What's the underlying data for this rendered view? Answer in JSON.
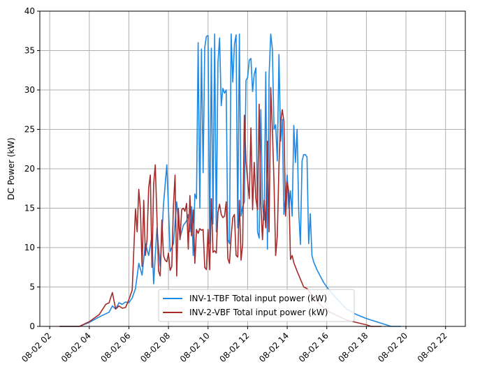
{
  "chart_data": {
    "type": "line",
    "title": "",
    "xlabel": "",
    "ylabel": "DC Power (kW)",
    "xlim": [
      "08-02 01:30",
      "08-02 23:00"
    ],
    "ylim": [
      0,
      40
    ],
    "grid": true,
    "legend_position": "bottom-center",
    "x_tick_labels": [
      "08-02 02",
      "08-02 04",
      "08-02 06",
      "08-02 08",
      "08-02 10",
      "08-02 12",
      "08-02 14",
      "08-02 16",
      "08-02 18",
      "08-02 20",
      "08-02 22"
    ],
    "y_tick_labels": [
      "0",
      "5",
      "10",
      "15",
      "20",
      "25",
      "30",
      "35",
      "40"
    ],
    "series": [
      {
        "name": "INV-1-TBF Total input power (kW)",
        "color": "#1e88e5",
        "points": [
          [
            "08-02 02:30",
            0
          ],
          [
            "08-02 03:00",
            0
          ],
          [
            "08-02 03:30",
            0
          ],
          [
            "08-02 04:00",
            0.5
          ],
          [
            "08-02 04:30",
            1.2
          ],
          [
            "08-02 05:00",
            1.8
          ],
          [
            "08-02 05:10",
            2.6
          ],
          [
            "08-02 05:20",
            2.2
          ],
          [
            "08-02 05:30",
            3.0
          ],
          [
            "08-02 05:40",
            2.8
          ],
          [
            "08-02 05:50",
            3.1
          ],
          [
            "08-02 06:00",
            3.0
          ],
          [
            "08-02 06:10",
            3.6
          ],
          [
            "08-02 06:20",
            4.8
          ],
          [
            "08-02 06:30",
            8.0
          ],
          [
            "08-02 06:40",
            6.5
          ],
          [
            "08-02 06:50",
            10.5
          ],
          [
            "08-02 07:00",
            9.0
          ],
          [
            "08-02 07:10",
            11.5
          ],
          [
            "08-02 07:15",
            5.4
          ],
          [
            "08-02 07:25",
            12.5
          ],
          [
            "08-02 07:35",
            7.6
          ],
          [
            "08-02 07:45",
            15.5
          ],
          [
            "08-02 07:55",
            20.5
          ],
          [
            "08-02 08:05",
            9.5
          ],
          [
            "08-02 08:15",
            10.5
          ],
          [
            "08-02 08:25",
            15.8
          ],
          [
            "08-02 08:35",
            11.2
          ],
          [
            "08-02 08:45",
            12.8
          ],
          [
            "08-02 08:55",
            13.4
          ],
          [
            "08-02 09:00",
            14.2
          ],
          [
            "08-02 09:05",
            12.0
          ],
          [
            "08-02 09:10",
            15.2
          ],
          [
            "08-02 09:15",
            9.0
          ],
          [
            "08-02 09:20",
            16.8
          ],
          [
            "08-02 09:25",
            16.2
          ],
          [
            "08-02 09:30",
            36.0
          ],
          [
            "08-02 09:35",
            15.0
          ],
          [
            "08-02 09:40",
            35.2
          ],
          [
            "08-02 09:45",
            19.5
          ],
          [
            "08-02 09:50",
            35.4
          ],
          [
            "08-02 09:55",
            36.8
          ],
          [
            "08-02 10:00",
            36.9
          ],
          [
            "08-02 10:05",
            10.5
          ],
          [
            "08-02 10:10",
            35.3
          ],
          [
            "08-02 10:15",
            13.0
          ],
          [
            "08-02 10:20",
            37.1
          ],
          [
            "08-02 10:25",
            12.0
          ],
          [
            "08-02 10:30",
            33.5
          ],
          [
            "08-02 10:35",
            36.6
          ],
          [
            "08-02 10:40",
            28.0
          ],
          [
            "08-02 10:45",
            30.2
          ],
          [
            "08-02 10:50",
            29.6
          ],
          [
            "08-02 10:55",
            30.0
          ],
          [
            "08-02 11:00",
            11.0
          ],
          [
            "08-02 11:05",
            10.5
          ],
          [
            "08-02 11:10",
            37.1
          ],
          [
            "08-02 11:15",
            31.0
          ],
          [
            "08-02 11:20",
            35.8
          ],
          [
            "08-02 11:25",
            37.0
          ],
          [
            "08-02 11:30",
            12.5
          ],
          [
            "08-02 11:35",
            37.1
          ],
          [
            "08-02 11:40",
            14.0
          ],
          [
            "08-02 11:45",
            15.2
          ],
          [
            "08-02 11:50",
            15.8
          ],
          [
            "08-02 11:55",
            31.2
          ],
          [
            "08-02 12:00",
            31.6
          ],
          [
            "08-02 12:05",
            33.8
          ],
          [
            "08-02 12:10",
            34.0
          ],
          [
            "08-02 12:15",
            29.8
          ],
          [
            "08-02 12:20",
            32.0
          ],
          [
            "08-02 12:25",
            32.8
          ],
          [
            "08-02 12:30",
            12.0
          ],
          [
            "08-02 12:35",
            11.2
          ],
          [
            "08-02 12:40",
            27.5
          ],
          [
            "08-02 12:45",
            15.5
          ],
          [
            "08-02 12:50",
            13.5
          ],
          [
            "08-02 12:55",
            32.3
          ],
          [
            "08-02 13:00",
            9.8
          ],
          [
            "08-02 13:05",
            31.8
          ],
          [
            "08-02 13:10",
            37.1
          ],
          [
            "08-02 13:15",
            35.2
          ],
          [
            "08-02 13:20",
            25.0
          ],
          [
            "08-02 13:25",
            25.6
          ],
          [
            "08-02 13:30",
            21.0
          ],
          [
            "08-02 13:35",
            34.5
          ],
          [
            "08-02 13:40",
            23.5
          ],
          [
            "08-02 13:45",
            26.3
          ],
          [
            "08-02 13:50",
            14.2
          ],
          [
            "08-02 13:55",
            16.5
          ],
          [
            "08-02 14:00",
            19.2
          ],
          [
            "08-02 14:05",
            15.0
          ],
          [
            "08-02 14:10",
            17.2
          ],
          [
            "08-02 14:15",
            14.0
          ],
          [
            "08-02 14:20",
            25.5
          ],
          [
            "08-02 14:25",
            20.8
          ],
          [
            "08-02 14:30",
            25.0
          ],
          [
            "08-02 14:35",
            14.5
          ],
          [
            "08-02 14:40",
            10.4
          ],
          [
            "08-02 14:45",
            21.0
          ],
          [
            "08-02 14:50",
            21.8
          ],
          [
            "08-02 14:55",
            21.8
          ],
          [
            "08-02 15:00",
            21.5
          ],
          [
            "08-02 15:05",
            10.5
          ],
          [
            "08-02 15:10",
            14.3
          ],
          [
            "08-02 15:15",
            9.0
          ],
          [
            "08-02 15:20",
            8.2
          ],
          [
            "08-02 15:30",
            7.2
          ],
          [
            "08-02 15:40",
            6.4
          ],
          [
            "08-02 15:50",
            5.6
          ],
          [
            "08-02 16:00",
            5.0
          ],
          [
            "08-02 16:30",
            3.5
          ],
          [
            "08-02 17:00",
            2.2
          ],
          [
            "08-02 17:30",
            1.5
          ],
          [
            "08-02 18:00",
            1.0
          ],
          [
            "08-02 18:30",
            0.6
          ],
          [
            "08-02 19:00",
            0.2
          ],
          [
            "08-02 19:15",
            0
          ],
          [
            "08-02 19:45",
            0
          ]
        ]
      },
      {
        "name": "INV-2-VBF Total input power (kW)",
        "color": "#a52a2a",
        "points": [
          [
            "08-02 02:30",
            0
          ],
          [
            "08-02 03:00",
            0
          ],
          [
            "08-02 03:30",
            0
          ],
          [
            "08-02 04:00",
            0.6
          ],
          [
            "08-02 04:30",
            1.5
          ],
          [
            "08-02 04:50",
            2.8
          ],
          [
            "08-02 05:00",
            3.0
          ],
          [
            "08-02 05:10",
            4.3
          ],
          [
            "08-02 05:20",
            2.2
          ],
          [
            "08-02 05:30",
            2.6
          ],
          [
            "08-02 05:40",
            2.3
          ],
          [
            "08-02 05:50",
            2.4
          ],
          [
            "08-02 06:00",
            3.4
          ],
          [
            "08-02 06:10",
            4.6
          ],
          [
            "08-02 06:20",
            14.9
          ],
          [
            "08-02 06:25",
            12.0
          ],
          [
            "08-02 06:30",
            17.4
          ],
          [
            "08-02 06:35",
            14.8
          ],
          [
            "08-02 06:40",
            7.6
          ],
          [
            "08-02 06:45",
            16.0
          ],
          [
            "08-02 06:50",
            9.0
          ],
          [
            "08-02 06:55",
            11.0
          ],
          [
            "08-02 07:00",
            17.6
          ],
          [
            "08-02 07:05",
            19.2
          ],
          [
            "08-02 07:10",
            7.5
          ],
          [
            "08-02 07:15",
            18.0
          ],
          [
            "08-02 07:20",
            20.5
          ],
          [
            "08-02 07:25",
            14.0
          ],
          [
            "08-02 07:30",
            7.0
          ],
          [
            "08-02 07:35",
            6.4
          ],
          [
            "08-02 07:40",
            13.5
          ],
          [
            "08-02 07:45",
            9.0
          ],
          [
            "08-02 07:50",
            8.4
          ],
          [
            "08-02 07:55",
            8.2
          ],
          [
            "08-02 08:00",
            9.3
          ],
          [
            "08-02 08:05",
            7.1
          ],
          [
            "08-02 08:10",
            7.6
          ],
          [
            "08-02 08:15",
            15.3
          ],
          [
            "08-02 08:20",
            19.2
          ],
          [
            "08-02 08:25",
            6.4
          ],
          [
            "08-02 08:30",
            15.0
          ],
          [
            "08-02 08:35",
            11.0
          ],
          [
            "08-02 08:40",
            14.8
          ],
          [
            "08-02 08:45",
            15.0
          ],
          [
            "08-02 08:50",
            14.6
          ],
          [
            "08-02 08:55",
            15.6
          ],
          [
            "08-02 09:00",
            9.8
          ],
          [
            "08-02 09:05",
            16.6
          ],
          [
            "08-02 09:10",
            11.5
          ],
          [
            "08-02 09:15",
            14.8
          ],
          [
            "08-02 09:20",
            8.0
          ],
          [
            "08-02 09:25",
            12.3
          ],
          [
            "08-02 09:30",
            11.8
          ],
          [
            "08-02 09:35",
            12.4
          ],
          [
            "08-02 09:40",
            12.2
          ],
          [
            "08-02 09:45",
            12.3
          ],
          [
            "08-02 09:50",
            7.5
          ],
          [
            "08-02 09:55",
            7.2
          ],
          [
            "08-02 10:00",
            12.3
          ],
          [
            "08-02 10:05",
            7.2
          ],
          [
            "08-02 10:10",
            16.2
          ],
          [
            "08-02 10:15",
            9.4
          ],
          [
            "08-02 10:20",
            9.6
          ],
          [
            "08-02 10:25",
            9.3
          ],
          [
            "08-02 10:30",
            14.5
          ],
          [
            "08-02 10:35",
            15.5
          ],
          [
            "08-02 10:40",
            14.2
          ],
          [
            "08-02 10:45",
            13.8
          ],
          [
            "08-02 10:50",
            14.0
          ],
          [
            "08-02 10:55",
            15.8
          ],
          [
            "08-02 11:00",
            8.6
          ],
          [
            "08-02 11:05",
            8.0
          ],
          [
            "08-02 11:10",
            11.4
          ],
          [
            "08-02 11:15",
            13.8
          ],
          [
            "08-02 11:20",
            14.2
          ],
          [
            "08-02 11:25",
            9.0
          ],
          [
            "08-02 11:30",
            8.8
          ],
          [
            "08-02 11:35",
            16.0
          ],
          [
            "08-02 11:40",
            8.4
          ],
          [
            "08-02 11:45",
            10.5
          ],
          [
            "08-02 11:50",
            26.8
          ],
          [
            "08-02 11:55",
            21.0
          ],
          [
            "08-02 12:00",
            18.5
          ],
          [
            "08-02 12:05",
            16.2
          ],
          [
            "08-02 12:10",
            25.2
          ],
          [
            "08-02 12:15",
            14.8
          ],
          [
            "08-02 12:20",
            20.8
          ],
          [
            "08-02 12:25",
            16.2
          ],
          [
            "08-02 12:30",
            14.8
          ],
          [
            "08-02 12:35",
            28.2
          ],
          [
            "08-02 12:40",
            15.5
          ],
          [
            "08-02 12:45",
            11.0
          ],
          [
            "08-02 12:50",
            16.0
          ],
          [
            "08-02 12:55",
            12.5
          ],
          [
            "08-02 13:00",
            23.5
          ],
          [
            "08-02 13:05",
            12.0
          ],
          [
            "08-02 13:10",
            30.3
          ],
          [
            "08-02 13:15",
            25.0
          ],
          [
            "08-02 13:20",
            18.2
          ],
          [
            "08-02 13:25",
            9.0
          ],
          [
            "08-02 13:30",
            11.5
          ],
          [
            "08-02 13:35",
            20.5
          ],
          [
            "08-02 13:40",
            26.0
          ],
          [
            "08-02 13:45",
            27.5
          ],
          [
            "08-02 13:50",
            26.0
          ],
          [
            "08-02 13:55",
            14.0
          ],
          [
            "08-02 14:00",
            18.3
          ],
          [
            "08-02 14:05",
            17.0
          ],
          [
            "08-02 14:10",
            8.5
          ],
          [
            "08-02 14:15",
            9.0
          ],
          [
            "08-02 14:20",
            8.1
          ],
          [
            "08-02 14:30",
            7.0
          ],
          [
            "08-02 14:40",
            6.0
          ],
          [
            "08-02 14:50",
            5.0
          ],
          [
            "08-02 15:00",
            4.8
          ],
          [
            "08-02 15:30",
            3.2
          ],
          [
            "08-02 16:00",
            2.0
          ],
          [
            "08-02 16:30",
            1.4
          ],
          [
            "08-02 17:00",
            0.8
          ],
          [
            "08-02 17:30",
            0.5
          ],
          [
            "08-02 18:00",
            0.2
          ],
          [
            "08-02 18:15",
            0
          ],
          [
            "08-02 18:45",
            0
          ]
        ]
      }
    ]
  }
}
